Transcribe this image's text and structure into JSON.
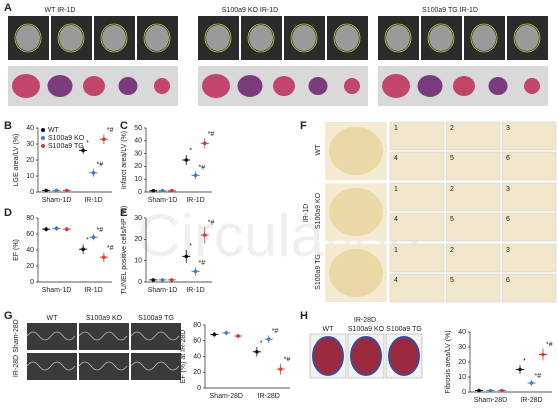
{
  "figure": {
    "panel_letters": [
      "A",
      "B",
      "C",
      "D",
      "E",
      "F",
      "G",
      "H"
    ],
    "panel_a_groups": [
      "WT IR-1D",
      "S100a9 KO IR-1D",
      "S100a9 TG IR-1D"
    ],
    "panel_f": {
      "condition": "IR-1D",
      "rows": [
        "WT",
        "S100a9 KO",
        "S100a9 TG"
      ],
      "insets": [
        "1",
        "2",
        "3",
        "4",
        "5",
        "6"
      ]
    },
    "panel_g": {
      "columns": [
        "WT",
        "S100a9 KO",
        "S100a9 TG"
      ],
      "rows": [
        "Sham-28D",
        "IR-28D"
      ]
    },
    "panel_h": {
      "condition": "IR-28D",
      "columns": [
        "WT",
        "S100a9 KO",
        "S100a9 TG"
      ]
    },
    "watermark": "Circulation"
  },
  "chart_data": [
    {
      "type": "dot",
      "y_label": "LGE area/LV (%)",
      "categories": [
        "Sham-1D",
        "IR-1D"
      ],
      "ylim": [
        0,
        40
      ],
      "yticks": [
        0,
        10,
        20,
        30,
        40
      ],
      "legend": "top-left",
      "series": [
        {
          "name": "WT",
          "color": "#111111",
          "values": [
            1,
            26
          ],
          "errors": [
            0.5,
            2
          ],
          "sig": [
            null,
            "*"
          ]
        },
        {
          "name": "S100a9 KO",
          "color": "#3f7fd0",
          "values": [
            1,
            12
          ],
          "errors": [
            0.5,
            2.5
          ],
          "sig": [
            null,
            "*#"
          ]
        },
        {
          "name": "S100a9 TG",
          "color": "#d23b3b",
          "values": [
            1,
            33
          ],
          "errors": [
            0.5,
            3
          ],
          "sig": [
            null,
            "*#"
          ]
        }
      ]
    },
    {
      "type": "dot",
      "y_label": "Infarct area/LV (%)",
      "categories": [
        "Sham-1D",
        "IR-1D"
      ],
      "ylim": [
        0,
        50
      ],
      "yticks": [
        0,
        10,
        20,
        30,
        40,
        50
      ],
      "series": [
        {
          "name": "WT",
          "color": "#111111",
          "values": [
            1,
            25
          ],
          "errors": [
            0.5,
            4
          ],
          "sig": [
            null,
            "*"
          ]
        },
        {
          "name": "S100a9 KO",
          "color": "#3f7fd0",
          "values": [
            1,
            13
          ],
          "errors": [
            0.5,
            3
          ],
          "sig": [
            null,
            "*#"
          ]
        },
        {
          "name": "S100a9 TG",
          "color": "#d23b3b",
          "values": [
            1,
            38
          ],
          "errors": [
            0.5,
            4
          ],
          "sig": [
            null,
            "*#"
          ]
        }
      ]
    },
    {
      "type": "dot",
      "y_label": "EF (%)",
      "categories": [
        "Sham-1D",
        "IR-1D"
      ],
      "ylim": [
        0,
        80
      ],
      "yticks": [
        0,
        20,
        40,
        60,
        80
      ],
      "series": [
        {
          "name": "WT",
          "color": "#111111",
          "values": [
            66,
            41
          ],
          "errors": [
            3,
            6
          ],
          "sig": [
            null,
            "*"
          ]
        },
        {
          "name": "S100a9 KO",
          "color": "#3f7fd0",
          "values": [
            67,
            56
          ],
          "errors": [
            3,
            4
          ],
          "sig": [
            null,
            "*#"
          ]
        },
        {
          "name": "S100a9 TG",
          "color": "#d23b3b",
          "values": [
            66,
            31
          ],
          "errors": [
            3,
            6
          ],
          "sig": [
            null,
            "*#"
          ]
        }
      ]
    },
    {
      "type": "dot",
      "y_label": "TUNEL positive cells/HP (%)",
      "categories": [
        "Sham-1D",
        "IR-1D"
      ],
      "ylim": [
        0,
        30
      ],
      "yticks": [
        0,
        10,
        20,
        30
      ],
      "series": [
        {
          "name": "WT",
          "color": "#111111",
          "values": [
            1,
            12
          ],
          "errors": [
            0.5,
            3
          ],
          "sig": [
            null,
            "*"
          ]
        },
        {
          "name": "S100a9 KO",
          "color": "#3f7fd0",
          "values": [
            1,
            5
          ],
          "errors": [
            0.5,
            2
          ],
          "sig": [
            null,
            "*#"
          ]
        },
        {
          "name": "S100a9 TG",
          "color": "#d23b3b",
          "values": [
            1,
            22
          ],
          "errors": [
            0.5,
            4
          ],
          "sig": [
            null,
            "*#"
          ]
        }
      ]
    },
    {
      "type": "dot",
      "y_label": "EF (%) at IR-28D",
      "categories": [
        "Sham-28D",
        "IR-28D"
      ],
      "ylim": [
        0,
        80
      ],
      "yticks": [
        0,
        20,
        40,
        60,
        80
      ],
      "series": [
        {
          "name": "WT",
          "color": "#111111",
          "values": [
            68,
            46
          ],
          "errors": [
            3,
            6
          ],
          "sig": [
            null,
            "*"
          ]
        },
        {
          "name": "S100a9 KO",
          "color": "#3f7fd0",
          "values": [
            70,
            62
          ],
          "errors": [
            3,
            5
          ],
          "sig": [
            null,
            "*#"
          ]
        },
        {
          "name": "S100a9 TG",
          "color": "#d23b3b",
          "values": [
            66,
            24
          ],
          "errors": [
            3,
            7
          ],
          "sig": [
            null,
            "*#"
          ]
        }
      ]
    },
    {
      "type": "dot",
      "y_label": "Fibrosis area/LV (%)",
      "categories": [
        "Sham-28D",
        "IR-28D"
      ],
      "ylim": [
        0,
        40
      ],
      "yticks": [
        0,
        10,
        20,
        30,
        40
      ],
      "series": [
        {
          "name": "WT",
          "color": "#111111",
          "values": [
            1,
            15
          ],
          "errors": [
            0.5,
            3
          ],
          "sig": [
            null,
            "*"
          ]
        },
        {
          "name": "S100a9 KO",
          "color": "#3f7fd0",
          "values": [
            1,
            6
          ],
          "errors": [
            0.5,
            2
          ],
          "sig": [
            null,
            "*#"
          ]
        },
        {
          "name": "S100a9 TG",
          "color": "#d23b3b",
          "values": [
            1,
            25
          ],
          "errors": [
            0.5,
            4
          ],
          "sig": [
            null,
            "*#"
          ]
        }
      ]
    }
  ]
}
